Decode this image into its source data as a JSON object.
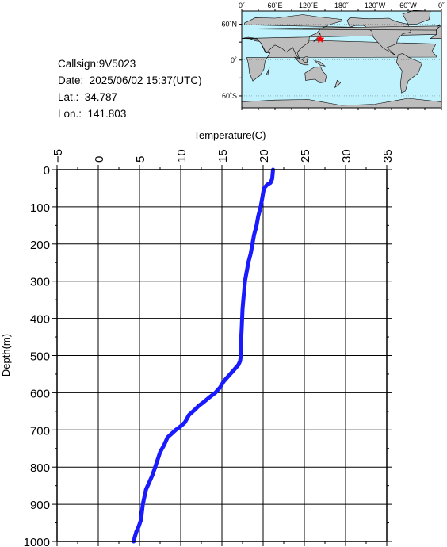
{
  "station": {
    "callsign_text": "Callsign:9V5023",
    "date_text": "Date:  2025/06/02 15:37(UTC)",
    "lat_text": "Lat.:  34.787",
    "lon_text": "Lon.:  141.803",
    "latitude": 34.787,
    "longitude": 141.803
  },
  "map": {
    "top_labels": [
      "0˚",
      "60˚E",
      "120˚E",
      "180˚",
      "120˚W",
      "60˚W",
      "0˚"
    ],
    "side_labels": [
      "60˚N",
      "0˚",
      "60˚S"
    ],
    "ocean_color": "#bff2fc",
    "land_color": "#bdbdbd",
    "marker_color": "#ff0000"
  },
  "chart_data": {
    "type": "line",
    "xlabel": "Temperature(C)",
    "ylabel": "Depth(m)",
    "xlim": [
      -5,
      35
    ],
    "ylim": [
      1000,
      0
    ],
    "x_ticks": [
      -5,
      0,
      5,
      10,
      15,
      20,
      25,
      30,
      35
    ],
    "y_ticks": [
      0,
      100,
      200,
      300,
      400,
      500,
      600,
      700,
      800,
      900,
      1000
    ],
    "x_tick_labels": [
      "−5",
      "0",
      "5",
      "10",
      "15",
      "20",
      "25",
      "30",
      "35"
    ],
    "y_tick_labels": [
      "0",
      "100",
      "200",
      "300",
      "400",
      "500",
      "600",
      "700",
      "800",
      "900",
      "1000"
    ],
    "grid": true,
    "line_color": "#1a1aff",
    "series": [
      {
        "x": [
          21.2,
          21.1,
          20.9,
          20.5,
          20.1,
          19.9,
          19.7,
          19.4,
          19.2,
          18.9,
          18.7,
          18.5,
          18.2,
          18.0,
          17.8,
          17.7,
          17.6,
          17.5,
          17.45,
          17.4,
          17.35,
          17.35,
          17.3,
          17.2,
          17.0,
          16.4,
          15.8,
          15.2,
          14.8,
          14.2,
          13.5,
          12.8,
          12.2,
          11.6,
          11.0,
          10.5,
          10.0,
          9.4,
          8.9,
          8.4,
          8.0,
          7.5,
          7.2,
          6.9,
          6.6,
          6.2,
          5.8,
          5.6,
          5.4,
          5.3,
          5.2,
          4.9,
          4.6,
          4.4,
          4.3
        ],
        "y": [
          0,
          25,
          35,
          40,
          50,
          75,
          100,
          125,
          150,
          175,
          200,
          225,
          250,
          275,
          300,
          325,
          350,
          375,
          400,
          425,
          450,
          475,
          500,
          515,
          525,
          540,
          555,
          570,
          585,
          600,
          612,
          625,
          635,
          648,
          660,
          680,
          690,
          700,
          710,
          720,
          740,
          760,
          780,
          800,
          820,
          840,
          860,
          880,
          900,
          920,
          940,
          960,
          975,
          990,
          1000
        ]
      }
    ]
  }
}
